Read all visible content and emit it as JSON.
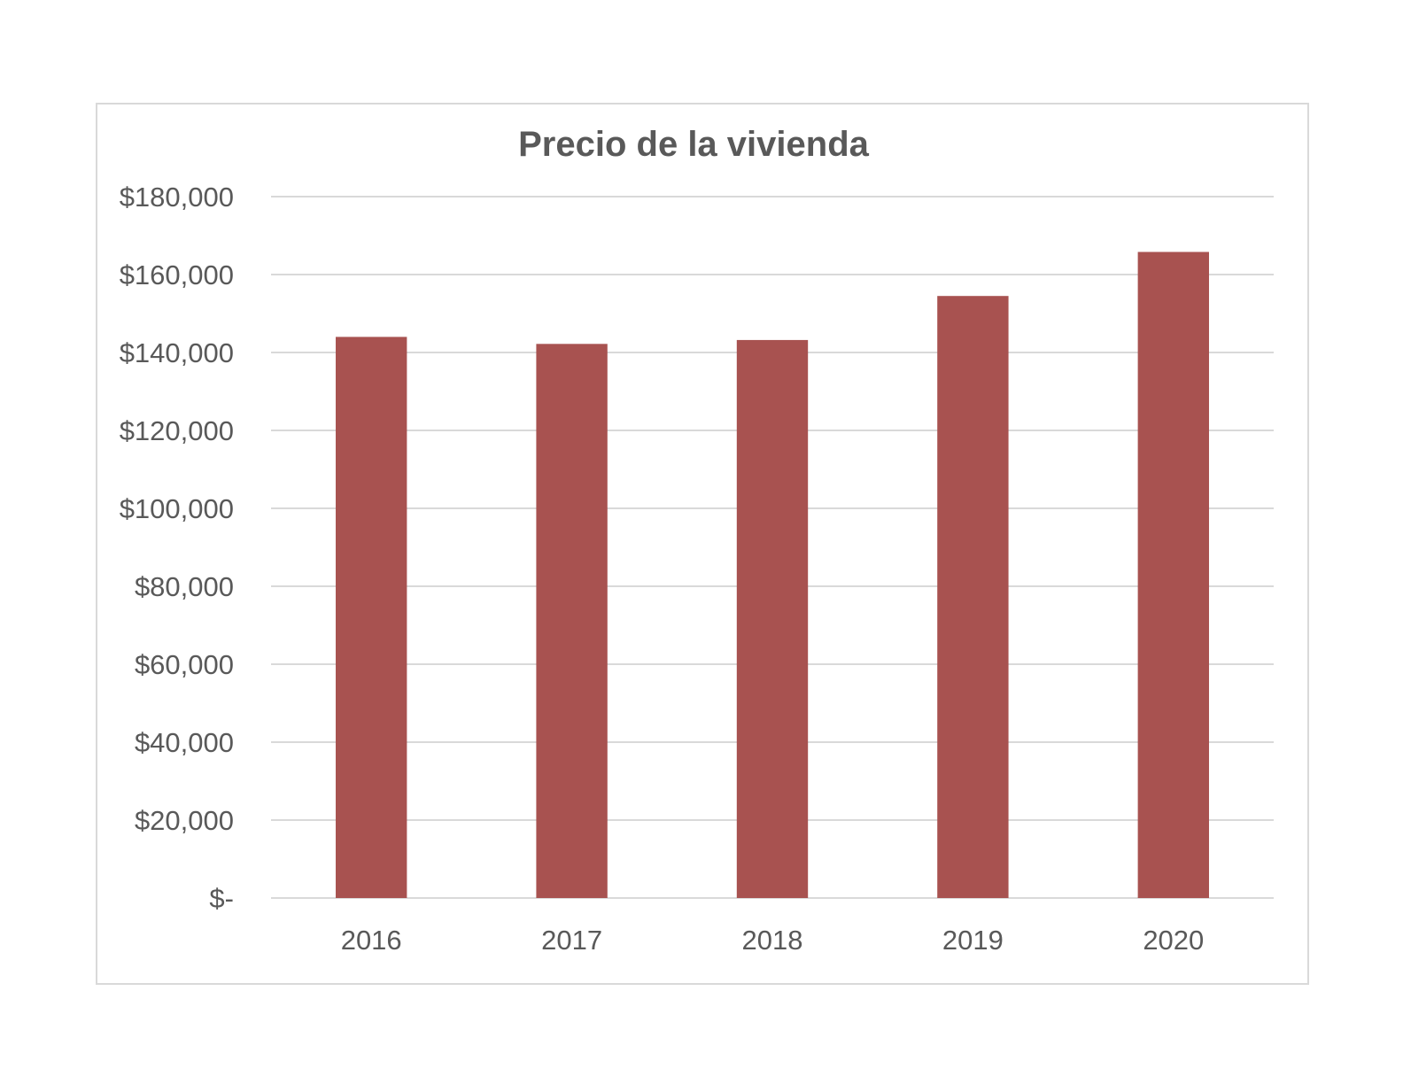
{
  "chart_data": {
    "type": "bar",
    "title": "Precio de la vivienda",
    "xlabel": "",
    "ylabel": "",
    "categories": [
      "2016",
      "2017",
      "2018",
      "2019",
      "2020"
    ],
    "values": [
      144000,
      142200,
      143200,
      154500,
      165800
    ],
    "ylim": [
      0,
      180000
    ],
    "y_ticks": [
      0,
      20000,
      40000,
      60000,
      80000,
      100000,
      120000,
      140000,
      160000,
      180000
    ],
    "y_tick_labels": [
      "$-",
      "$20,000",
      "$40,000",
      "$60,000",
      "$80,000",
      "$100,000",
      "$120,000",
      "$140,000",
      "$160,000",
      "$180,000"
    ],
    "grid": true,
    "legend": "none",
    "colors": {
      "bar": "#a85250",
      "gridline": "#d9d9d9",
      "text": "#595959",
      "border": "#d9d9d9"
    }
  }
}
